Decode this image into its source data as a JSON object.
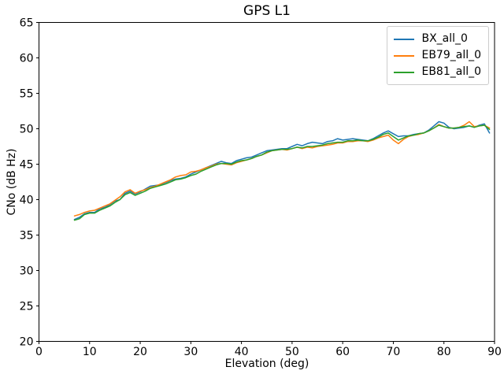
{
  "figure": {
    "background": "#ffffff",
    "axis_color": "#000000",
    "legend_border_color": "#cccccc"
  },
  "chart_data": {
    "type": "line",
    "title": "GPS L1",
    "xlabel": "Elevation (deg)",
    "ylabel": "CNo (dB Hz)",
    "xlim": [
      0,
      90
    ],
    "ylim": [
      20,
      65
    ],
    "xticks": [
      0,
      10,
      20,
      30,
      40,
      50,
      60,
      70,
      80,
      90
    ],
    "yticks": [
      20,
      25,
      30,
      35,
      40,
      45,
      50,
      55,
      60,
      65
    ],
    "grid": false,
    "legend_position": "upper right",
    "x": [
      7,
      8,
      9,
      10,
      11,
      12,
      13,
      14,
      15,
      16,
      17,
      18,
      19,
      20,
      21,
      22,
      23,
      24,
      25,
      26,
      27,
      28,
      29,
      30,
      31,
      32,
      33,
      34,
      35,
      36,
      37,
      38,
      39,
      40,
      41,
      42,
      43,
      44,
      45,
      46,
      47,
      48,
      49,
      50,
      51,
      52,
      53,
      54,
      55,
      56,
      57,
      58,
      59,
      60,
      61,
      62,
      63,
      64,
      65,
      66,
      67,
      68,
      69,
      70,
      71,
      72,
      73,
      74,
      75,
      76,
      77,
      78,
      79,
      80,
      81,
      82,
      83,
      84,
      85,
      86,
      87,
      88,
      89
    ],
    "series": [
      {
        "name": "BX_all_0",
        "color": "#1f77b4",
        "values": [
          37.2,
          37.5,
          38.0,
          38.2,
          38.2,
          38.7,
          38.9,
          39.3,
          39.8,
          40.0,
          40.9,
          41.2,
          40.8,
          41.1,
          41.5,
          41.9,
          42.0,
          42.1,
          42.4,
          42.7,
          42.9,
          43.0,
          43.2,
          43.6,
          43.9,
          44.2,
          44.5,
          44.8,
          45.1,
          45.4,
          45.2,
          45.1,
          45.5,
          45.7,
          45.9,
          46.0,
          46.3,
          46.6,
          46.9,
          47.0,
          47.1,
          47.2,
          47.2,
          47.5,
          47.8,
          47.6,
          47.9,
          48.1,
          48.0,
          47.9,
          48.2,
          48.3,
          48.6,
          48.4,
          48.5,
          48.6,
          48.5,
          48.4,
          48.3,
          48.6,
          49.0,
          49.4,
          49.7,
          49.3,
          48.9,
          49.0,
          49.0,
          49.2,
          49.3,
          49.4,
          49.8,
          50.4,
          51.0,
          50.8,
          50.2,
          50.0,
          50.1,
          50.2,
          50.4,
          50.2,
          50.5,
          50.7,
          49.4
        ]
      },
      {
        "name": "EB79_all_0",
        "color": "#ff7f0e",
        "values": [
          37.7,
          37.9,
          38.2,
          38.4,
          38.5,
          38.8,
          39.1,
          39.4,
          39.9,
          40.4,
          41.1,
          41.4,
          40.9,
          41.2,
          41.4,
          41.7,
          41.9,
          42.2,
          42.5,
          42.8,
          43.2,
          43.4,
          43.5,
          43.9,
          44.0,
          44.2,
          44.5,
          44.7,
          45.0,
          45.1,
          45.0,
          44.9,
          45.2,
          45.4,
          45.6,
          45.8,
          46.1,
          46.3,
          46.6,
          46.9,
          47.0,
          47.1,
          47.0,
          47.2,
          47.4,
          47.2,
          47.4,
          47.3,
          47.5,
          47.6,
          47.7,
          47.8,
          48.0,
          48.0,
          48.2,
          48.2,
          48.3,
          48.3,
          48.2,
          48.4,
          48.7,
          48.9,
          49.1,
          48.4,
          47.9,
          48.5,
          48.9,
          49.1,
          49.2,
          49.4,
          49.7,
          50.1,
          50.6,
          50.3,
          50.1,
          50.1,
          50.2,
          50.5,
          51.0,
          50.3,
          50.4,
          50.5,
          50.1
        ]
      },
      {
        "name": "EB81_all_0",
        "color": "#2ca02c",
        "values": [
          37.1,
          37.3,
          37.9,
          38.1,
          38.1,
          38.5,
          38.8,
          39.1,
          39.6,
          40.0,
          40.7,
          41.0,
          40.6,
          40.9,
          41.2,
          41.6,
          41.8,
          42.0,
          42.2,
          42.5,
          42.8,
          42.9,
          43.1,
          43.4,
          43.6,
          44.0,
          44.3,
          44.6,
          44.9,
          45.1,
          45.1,
          45.0,
          45.3,
          45.5,
          45.6,
          45.8,
          46.1,
          46.3,
          46.7,
          46.9,
          47.0,
          47.1,
          47.1,
          47.2,
          47.4,
          47.3,
          47.5,
          47.5,
          47.6,
          47.7,
          47.9,
          48.0,
          48.1,
          48.1,
          48.3,
          48.3,
          48.4,
          48.3,
          48.3,
          48.5,
          48.8,
          49.2,
          49.4,
          48.9,
          48.4,
          48.7,
          49.0,
          49.1,
          49.3,
          49.4,
          49.7,
          50.1,
          50.5,
          50.3,
          50.1,
          50.1,
          50.2,
          50.3,
          50.4,
          50.2,
          50.4,
          50.5,
          49.9
        ]
      }
    ]
  }
}
